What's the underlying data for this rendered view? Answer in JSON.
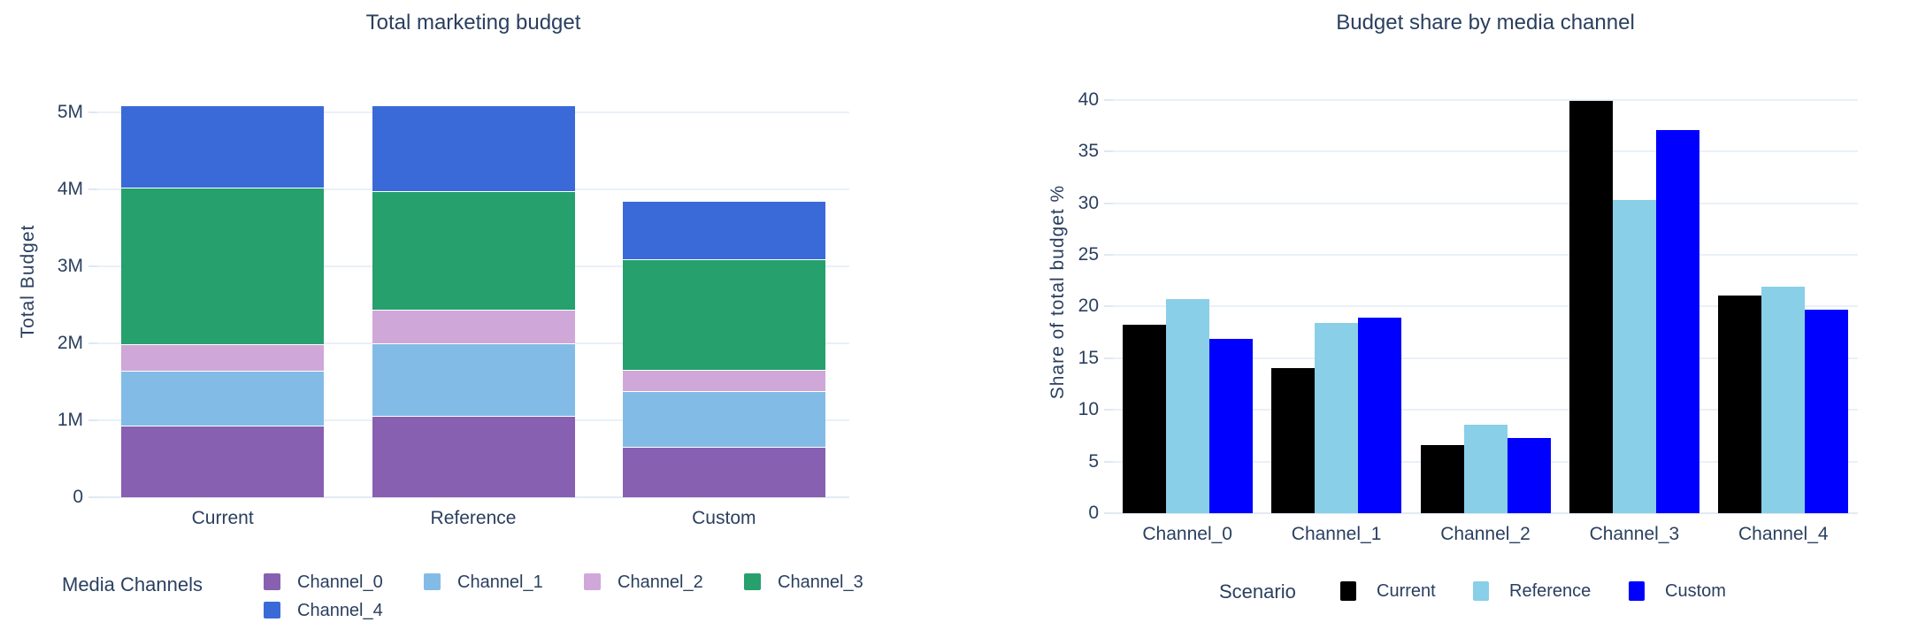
{
  "page": {
    "background": "#ffffff",
    "text_color": "#2a3f5f",
    "grid_color": "#eaf0f9"
  },
  "chart_data": [
    {
      "type": "bar",
      "mode": "stacked",
      "title": "Total marketing budget",
      "xlabel": "",
      "ylabel": "Total Budget",
      "categories": [
        "Current",
        "Reference",
        "Custom"
      ],
      "series": [
        {
          "name": "Channel_0",
          "color": "#8860b2",
          "values": [
            930000,
            1060000,
            650000
          ]
        },
        {
          "name": "Channel_1",
          "color": "#82bce6",
          "values": [
            720000,
            940000,
            730000
          ]
        },
        {
          "name": "Channel_2",
          "color": "#d0a7d9",
          "values": [
            340000,
            440000,
            280000
          ]
        },
        {
          "name": "Channel_3",
          "color": "#26a06d",
          "values": [
            2030000,
            1540000,
            1430000
          ]
        },
        {
          "name": "Channel_4",
          "color": "#3a6ad8",
          "values": [
            1080000,
            1120000,
            760000
          ]
        }
      ],
      "totals": [
        5100000,
        5100000,
        3850000
      ],
      "yticks": [
        {
          "v": 0,
          "label": "0"
        },
        {
          "v": 1000000,
          "label": "1M"
        },
        {
          "v": 2000000,
          "label": "2M"
        },
        {
          "v": 3000000,
          "label": "3M"
        },
        {
          "v": 4000000,
          "label": "4M"
        },
        {
          "v": 5000000,
          "label": "5M"
        }
      ],
      "ylim": [
        0,
        5600000
      ],
      "grid": true,
      "legend_title": "Media Channels",
      "legend_position": "bottom-left"
    },
    {
      "type": "bar",
      "mode": "grouped",
      "title": "Budget share by media channel",
      "xlabel": "",
      "ylabel": "Share of total budget %",
      "categories": [
        "Channel_0",
        "Channel_1",
        "Channel_2",
        "Channel_3",
        "Channel_4"
      ],
      "series": [
        {
          "name": "Current",
          "color": "#000000",
          "values": [
            18.2,
            14.0,
            6.6,
            39.9,
            21.1
          ]
        },
        {
          "name": "Reference",
          "color": "#89cfe8",
          "values": [
            20.7,
            18.4,
            8.6,
            30.3,
            21.9
          ]
        },
        {
          "name": "Custom",
          "color": "#0000ff",
          "values": [
            16.9,
            18.9,
            7.3,
            37.1,
            19.7
          ]
        }
      ],
      "yticks": [
        {
          "v": 0,
          "label": "0"
        },
        {
          "v": 5,
          "label": "5"
        },
        {
          "v": 10,
          "label": "10"
        },
        {
          "v": 15,
          "label": "15"
        },
        {
          "v": 20,
          "label": "20"
        },
        {
          "v": 25,
          "label": "25"
        },
        {
          "v": 30,
          "label": "30"
        },
        {
          "v": 35,
          "label": "35"
        },
        {
          "v": 40,
          "label": "40"
        }
      ],
      "ylim": [
        0,
        42.8
      ],
      "grid": true,
      "legend_title": "Scenario",
      "legend_position": "bottom-center"
    }
  ]
}
